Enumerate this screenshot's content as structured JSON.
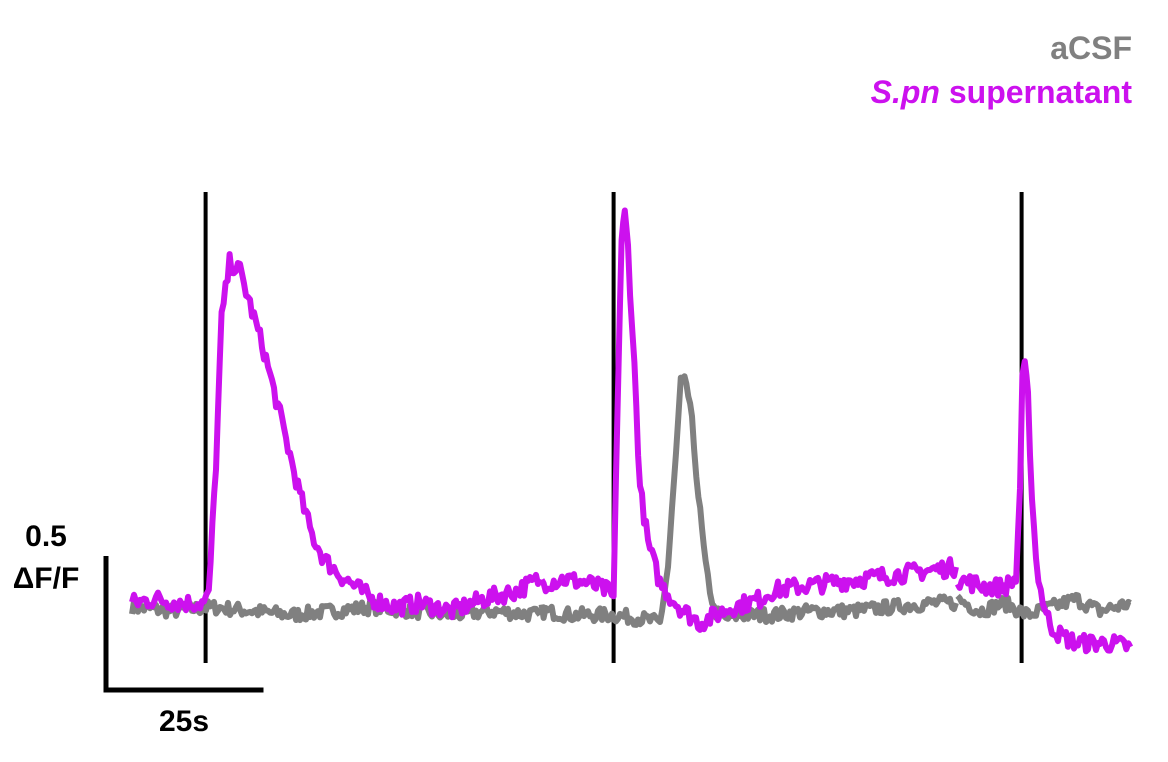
{
  "chart_data": {
    "type": "line",
    "title": "",
    "xlabel": "",
    "ylabel": "",
    "xlim": [
      0,
      125
    ],
    "ylim": [
      -0.1,
      1.1
    ],
    "grid": false,
    "legend_position": "top-right",
    "legend": [
      {
        "key": "acsf",
        "text": "aCSF",
        "color": "#808080"
      },
      {
        "key": "spn",
        "italic": "S.pn",
        "text": " supernatant",
        "color": "#cc11ee"
      }
    ],
    "stimulus_times": [
      9.2,
      60.2,
      111.2
    ],
    "scalebar": {
      "time_s": 25,
      "time_label": "25s",
      "amplitude": 0.5,
      "amp_label_1": "0.5",
      "amp_label_2": "ΔF/F"
    },
    "series": [
      {
        "key": "spn",
        "color": "#cc11ee",
        "segments": [
          {
            "t": [
              0,
              3,
              6,
              9,
              9.6,
              10.5,
              11.2,
              12.2,
              13.5,
              15,
              16.5,
              18,
              19.5,
              21,
              22.5,
              24,
              26,
              28,
              30,
              33,
              36,
              40,
              44,
              48,
              51
            ],
            "y": [
              0.01,
              0.02,
              0.01,
              0.01,
              0.03,
              0.36,
              0.72,
              0.86,
              0.84,
              0.74,
              0.64,
              0.52,
              0.4,
              0.28,
              0.18,
              0.12,
              0.08,
              0.05,
              0.02,
              0.0,
              0.01,
              -0.01,
              0.02,
              0.04,
              0.07
            ]
          },
          {
            "t": [
              51.2,
              54,
              57,
              59.5,
              60.2,
              60.8,
              61.2,
              61.6,
              62,
              62.8,
              63.5,
              64.5,
              66,
              67.5,
              69,
              71,
              73,
              75,
              77,
              78.5,
              80,
              83,
              87,
              91,
              95,
              99,
              103
            ],
            "y": [
              0.06,
              0.07,
              0.06,
              0.04,
              0.02,
              0.6,
              0.92,
              0.98,
              0.9,
              0.6,
              0.3,
              0.16,
              0.06,
              0.02,
              -0.01,
              -0.04,
              -0.02,
              0.0,
              0.01,
              0.02,
              0.04,
              0.05,
              0.06,
              0.07,
              0.08,
              0.09,
              0.1
            ]
          },
          {
            "t": [
              103.2,
              105,
              107,
              109,
              110.5,
              111,
              111.3,
              111.6,
              112,
              112.5,
              113,
              113.6,
              114.3,
              115,
              116,
              117,
              118,
              120,
              122,
              124.8
            ],
            "y": [
              0.07,
              0.06,
              0.05,
              0.05,
              0.07,
              0.3,
              0.56,
              0.6,
              0.52,
              0.28,
              0.12,
              0.04,
              -0.02,
              -0.05,
              -0.07,
              -0.08,
              -0.09,
              -0.09,
              -0.09,
              -0.1
            ]
          }
        ]
      },
      {
        "key": "acsf",
        "color": "#808080",
        "segments": [
          {
            "t": [
              0,
              5,
              10,
              15,
              20,
              25,
              30,
              35,
              40,
              45,
              51
            ],
            "y": [
              0,
              -0.01,
              0,
              -0.01,
              -0.02,
              -0.01,
              0,
              -0.01,
              -0.02,
              -0.01,
              -0.02
            ]
          },
          {
            "t": [
              51.2,
              55,
              60,
              64,
              66,
              67,
              68,
              68.6,
              69.3,
              70,
              70.8,
              71.7,
              72.8,
              74,
              76,
              80,
              85,
              90,
              95,
              100,
              103
            ],
            "y": [
              -0.01,
              -0.02,
              -0.02,
              -0.03,
              -0.04,
              0.1,
              0.38,
              0.56,
              0.56,
              0.46,
              0.28,
              0.1,
              -0.01,
              -0.03,
              -0.02,
              -0.02,
              -0.01,
              -0.01,
              0,
              0.01,
              0.01
            ]
          },
          {
            "t": [
              103.2,
              106,
              109,
              112,
              115,
              118,
              121,
              124.8
            ],
            "y": [
              0.02,
              -0.01,
              0.01,
              -0.02,
              0.0,
              0.02,
              -0.01,
              0.01
            ]
          }
        ]
      }
    ]
  }
}
